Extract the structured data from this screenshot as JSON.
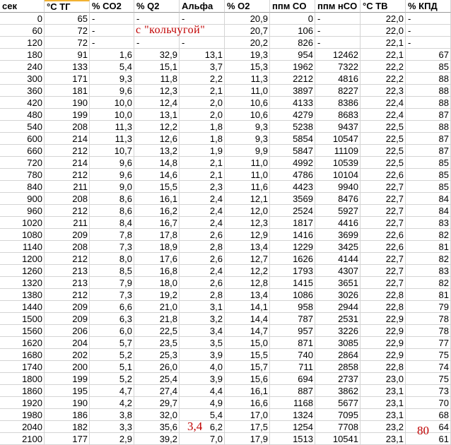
{
  "columns": [
    "сек",
    "°C ТГ",
    "% CO2",
    "% Q2",
    "Альфа",
    "% O2",
    "ппм CO",
    "ппм нCO",
    "°C ТВ",
    "% КПД"
  ],
  "rows": [
    [
      "0",
      "65",
      "-",
      "-",
      "-",
      "20,9",
      "0",
      "-",
      "22,0",
      "-"
    ],
    [
      "60",
      "72",
      "-",
      "",
      "",
      "20,7",
      "106",
      "-",
      "22,0",
      "-"
    ],
    [
      "120",
      "72",
      "-",
      "-",
      "-",
      "20,2",
      "826",
      "-",
      "22,1",
      "-"
    ],
    [
      "180",
      "91",
      "1,6",
      "32,9",
      "13,1",
      "19,3",
      "954",
      "12462",
      "22,1",
      "67"
    ],
    [
      "240",
      "133",
      "5,4",
      "15,1",
      "3,7",
      "15,3",
      "1962",
      "7322",
      "22,2",
      "85"
    ],
    [
      "300",
      "171",
      "9,3",
      "11,8",
      "2,2",
      "11,3",
      "2212",
      "4816",
      "22,2",
      "88"
    ],
    [
      "360",
      "181",
      "9,6",
      "12,3",
      "2,1",
      "11,0",
      "3897",
      "8227",
      "22,3",
      "88"
    ],
    [
      "420",
      "190",
      "10,0",
      "12,4",
      "2,0",
      "10,6",
      "4133",
      "8386",
      "22,4",
      "88"
    ],
    [
      "480",
      "199",
      "10,0",
      "13,1",
      "2,0",
      "10,6",
      "4279",
      "8683",
      "22,4",
      "87"
    ],
    [
      "540",
      "208",
      "11,3",
      "12,2",
      "1,8",
      "9,3",
      "5238",
      "9437",
      "22,5",
      "88"
    ],
    [
      "600",
      "214",
      "11,3",
      "12,6",
      "1,8",
      "9,3",
      "5854",
      "10547",
      "22,5",
      "87"
    ],
    [
      "660",
      "212",
      "10,7",
      "13,2",
      "1,9",
      "9,9",
      "5847",
      "11109",
      "22,5",
      "87"
    ],
    [
      "720",
      "214",
      "9,6",
      "14,8",
      "2,1",
      "11,0",
      "4992",
      "10539",
      "22,5",
      "85"
    ],
    [
      "780",
      "212",
      "9,6",
      "14,6",
      "2,1",
      "11,0",
      "4786",
      "10104",
      "22,6",
      "85"
    ],
    [
      "840",
      "211",
      "9,0",
      "15,5",
      "2,3",
      "11,6",
      "4423",
      "9940",
      "22,7",
      "85"
    ],
    [
      "900",
      "208",
      "8,6",
      "16,1",
      "2,4",
      "12,1",
      "3569",
      "8476",
      "22,7",
      "84"
    ],
    [
      "960",
      "212",
      "8,6",
      "16,2",
      "2,4",
      "12,0",
      "2524",
      "5927",
      "22,7",
      "84"
    ],
    [
      "1020",
      "211",
      "8,4",
      "16,7",
      "2,4",
      "12,3",
      "1817",
      "4416",
      "22,7",
      "83"
    ],
    [
      "1080",
      "209",
      "7,8",
      "17,8",
      "2,6",
      "12,9",
      "1416",
      "3699",
      "22,6",
      "82"
    ],
    [
      "1140",
      "208",
      "7,3",
      "18,9",
      "2,8",
      "13,4",
      "1229",
      "3425",
      "22,6",
      "81"
    ],
    [
      "1200",
      "212",
      "8,0",
      "17,6",
      "2,6",
      "12,7",
      "1626",
      "4144",
      "22,7",
      "82"
    ],
    [
      "1260",
      "213",
      "8,5",
      "16,8",
      "2,4",
      "12,2",
      "1793",
      "4307",
      "22,7",
      "83"
    ],
    [
      "1320",
      "213",
      "7,9",
      "18,0",
      "2,6",
      "12,8",
      "1415",
      "3651",
      "22,7",
      "82"
    ],
    [
      "1380",
      "212",
      "7,3",
      "19,2",
      "2,8",
      "13,4",
      "1086",
      "3026",
      "22,8",
      "81"
    ],
    [
      "1440",
      "209",
      "6,6",
      "21,0",
      "3,1",
      "14,1",
      "958",
      "2944",
      "22,8",
      "79"
    ],
    [
      "1500",
      "209",
      "6,3",
      "21,8",
      "3,2",
      "14,4",
      "787",
      "2531",
      "22,9",
      "78"
    ],
    [
      "1560",
      "206",
      "6,0",
      "22,5",
      "3,4",
      "14,7",
      "957",
      "3226",
      "22,9",
      "78"
    ],
    [
      "1620",
      "204",
      "5,7",
      "23,5",
      "3,5",
      "15,0",
      "871",
      "3085",
      "22,9",
      "77"
    ],
    [
      "1680",
      "202",
      "5,2",
      "25,3",
      "3,9",
      "15,5",
      "740",
      "2864",
      "22,9",
      "75"
    ],
    [
      "1740",
      "200",
      "5,1",
      "26,0",
      "4,0",
      "15,7",
      "711",
      "2858",
      "22,8",
      "74"
    ],
    [
      "1800",
      "199",
      "5,2",
      "25,4",
      "3,9",
      "15,6",
      "694",
      "2737",
      "23,0",
      "75"
    ],
    [
      "1860",
      "195",
      "4,7",
      "27,4",
      "4,4",
      "16,1",
      "887",
      "3862",
      "23,1",
      "73"
    ],
    [
      "1920",
      "190",
      "4,2",
      "29,7",
      "4,9",
      "16,6",
      "1168",
      "5677",
      "23,1",
      "70"
    ],
    [
      "1980",
      "186",
      "3,8",
      "32,0",
      "5,4",
      "17,0",
      "1324",
      "7095",
      "23,1",
      "68"
    ],
    [
      "2040",
      "182",
      "3,3",
      "35,6",
      "6,2",
      "17,5",
      "1254",
      "7708",
      "23,2",
      "64"
    ],
    [
      "2100",
      "177",
      "2,9",
      "39,2",
      "7,0",
      "17,9",
      "1513",
      "10541",
      "23,1",
      "61"
    ]
  ],
  "annotations": {
    "chainmail_note": "с \"кольчугой\"",
    "alpha_note": "3,4",
    "efficiency_note": "80",
    "color": "#c00000"
  },
  "colors": {
    "selected_header_border": "#f2b233",
    "gridline": "#d4d4d4"
  }
}
